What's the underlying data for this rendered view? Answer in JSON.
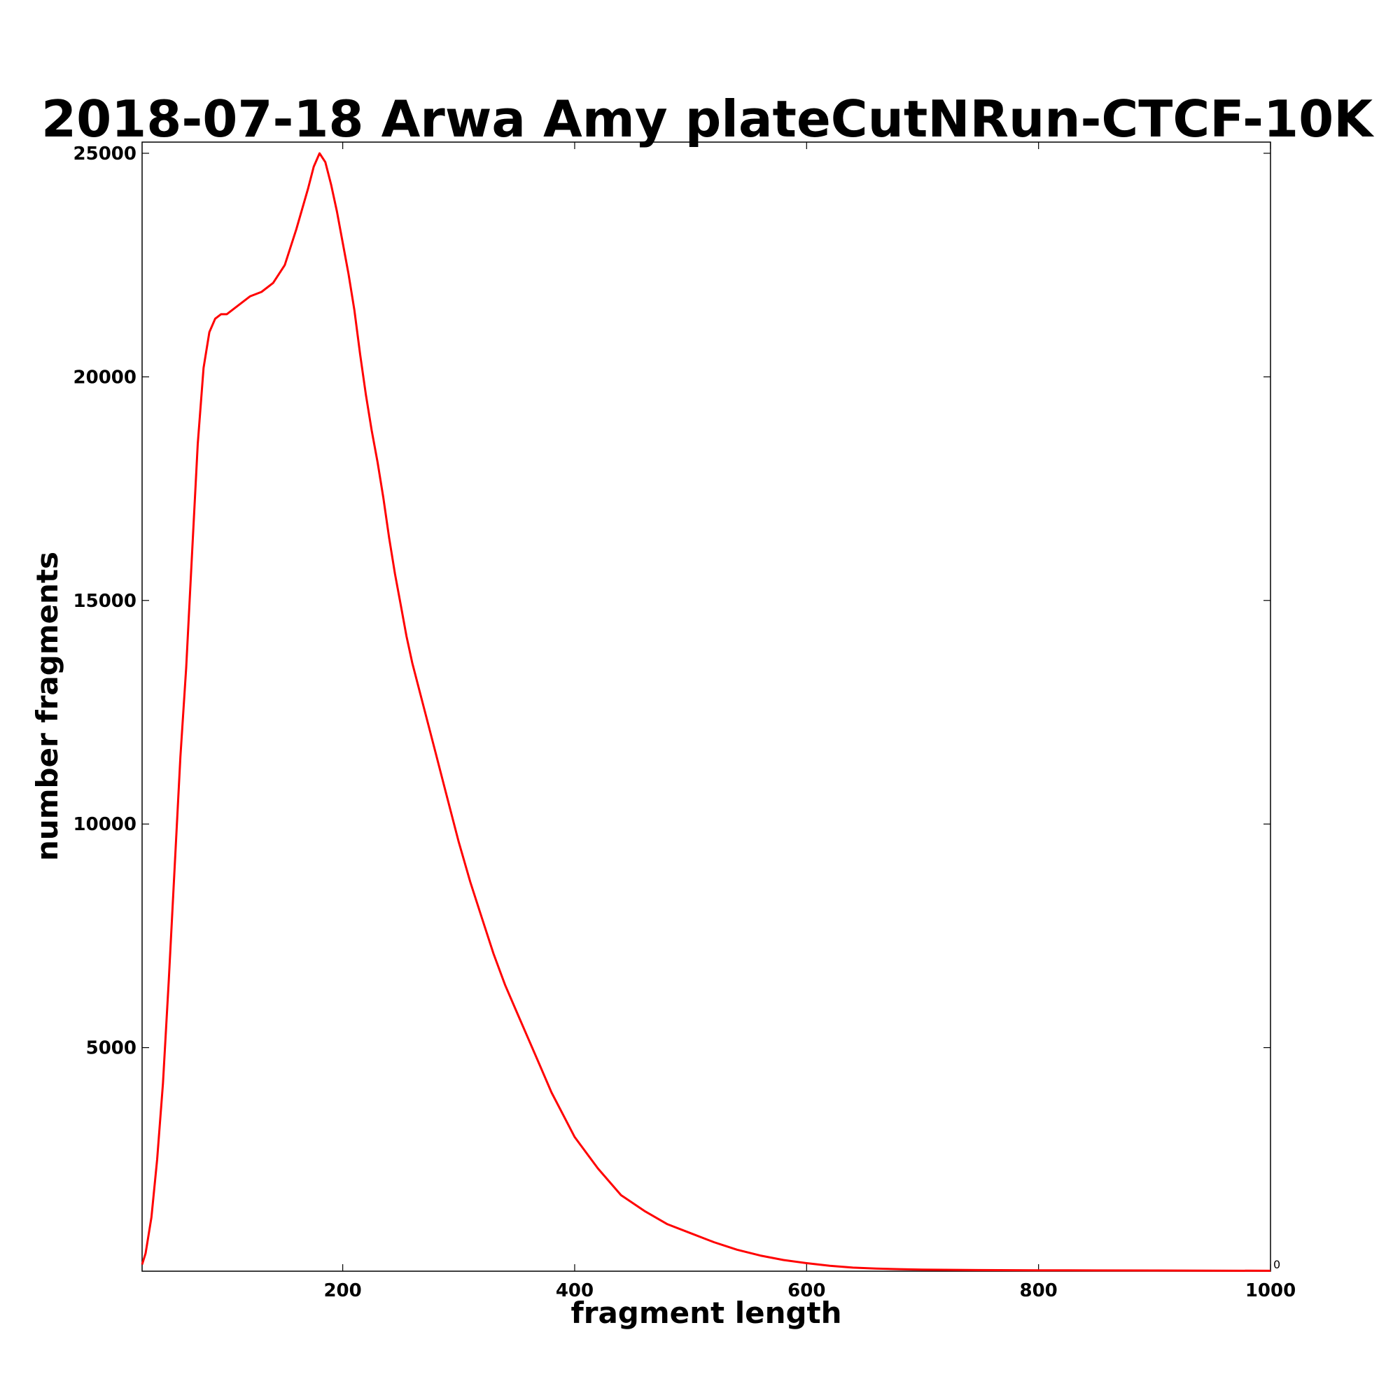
{
  "chart_data": {
    "type": "line",
    "title": "2018-07-18 Arwa Amy plateCutNRun-CTCF-10K",
    "xlabel": "fragment length",
    "ylabel": "number fragments",
    "xlim": [
      27,
      1000
    ],
    "ylim": [
      0,
      25250
    ],
    "x_ticks": [
      200,
      400,
      600,
      800,
      1000
    ],
    "x_tick_labels": [
      "200",
      "400",
      "600",
      "800",
      "1000"
    ],
    "y_ticks": [
      5000,
      10000,
      15000,
      20000,
      25000
    ],
    "y_tick_labels": [
      "5000",
      "10000",
      "15000",
      "20000",
      "25000"
    ],
    "right_axis_label": "0",
    "grid": false,
    "legend": "none",
    "series": [
      {
        "color": "#ff0000",
        "x": [
          27,
          30,
          35,
          40,
          45,
          50,
          55,
          60,
          65,
          70,
          75,
          80,
          85,
          90,
          95,
          100,
          110,
          120,
          130,
          140,
          150,
          160,
          170,
          175,
          180,
          185,
          190,
          195,
          200,
          205,
          210,
          215,
          220,
          225,
          230,
          235,
          240,
          245,
          250,
          255,
          260,
          270,
          280,
          290,
          300,
          310,
          320,
          330,
          340,
          350,
          360,
          370,
          380,
          390,
          400,
          420,
          440,
          460,
          480,
          500,
          520,
          540,
          560,
          580,
          600,
          620,
          640,
          660,
          680,
          700,
          750,
          800,
          850,
          900,
          950,
          1000
        ],
        "y": [
          150,
          400,
          1200,
          2500,
          4200,
          6500,
          9000,
          11500,
          13500,
          16000,
          18500,
          20200,
          21000,
          21300,
          21400,
          21400,
          21600,
          21800,
          21900,
          22100,
          22500,
          23300,
          24200,
          24700,
          25000,
          24800,
          24300,
          23700,
          23000,
          22300,
          21500,
          20500,
          19600,
          18800,
          18100,
          17300,
          16400,
          15600,
          14900,
          14200,
          13600,
          12600,
          11600,
          10600,
          9600,
          8700,
          7900,
          7100,
          6400,
          5800,
          5200,
          4600,
          4000,
          3500,
          3000,
          2300,
          1700,
          1350,
          1050,
          850,
          650,
          480,
          350,
          250,
          180,
          120,
          80,
          60,
          45,
          35,
          25,
          20,
          18,
          15,
          12,
          10
        ]
      }
    ]
  }
}
